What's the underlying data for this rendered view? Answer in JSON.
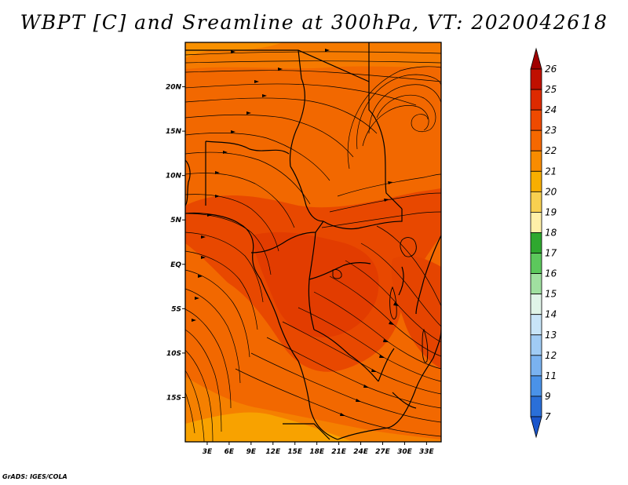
{
  "title": "WBPT [C] and Sreamline at 300hPa, VT: 2020042618",
  "credit": "GrADS: IGES/COLA",
  "map": {
    "lon_range": [
      0,
      35
    ],
    "lat_range": [
      -20,
      25
    ],
    "x_ticks": [
      "3E",
      "6E",
      "9E",
      "12E",
      "15E",
      "18E",
      "21E",
      "24E",
      "27E",
      "30E",
      "33E"
    ],
    "x_tick_values": [
      3,
      6,
      9,
      12,
      15,
      18,
      21,
      24,
      27,
      30,
      33
    ],
    "y_ticks": [
      "20N",
      "15N",
      "10N",
      "5N",
      "EQ",
      "5S",
      "10S",
      "15S"
    ],
    "y_tick_values": [
      20,
      15,
      10,
      5,
      0,
      -5,
      -10,
      -15
    ]
  },
  "colorbar": {
    "labels": [
      "26",
      "25",
      "24",
      "23",
      "22",
      "21",
      "20",
      "19",
      "18",
      "17",
      "16",
      "15",
      "14",
      "13",
      "12",
      "11",
      "9",
      "7"
    ],
    "colors": [
      "#a00000",
      "#c01000",
      "#dd2a00",
      "#ee4a00",
      "#f56800",
      "#f88c00",
      "#f8ae00",
      "#f8d050",
      "#fff0a8",
      "#2fa82f",
      "#5cc85c",
      "#a0e0a0",
      "#e0f4e8",
      "#c8e4f8",
      "#a0cbf4",
      "#7ab2f0",
      "#4a92e8",
      "#2a6fd8",
      "#1a56cc"
    ]
  }
}
